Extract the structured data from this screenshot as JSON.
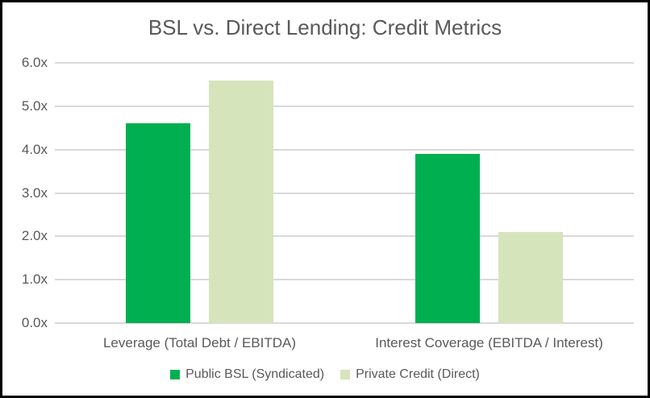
{
  "title": "BSL vs. Direct Lending: Credit Metrics",
  "chart_data": {
    "type": "bar",
    "title": "BSL vs. Direct Lending: Credit Metrics",
    "categories": [
      "Leverage (Total Debt / EBITDA)",
      "Interest Coverage (EBITDA / Interest)"
    ],
    "series": [
      {
        "name": "Public BSL (Syndicated)",
        "color": "#00B050",
        "values": [
          4.6,
          3.9
        ]
      },
      {
        "name": "Private Credit (Direct)",
        "color": "#D6E4BC",
        "values": [
          5.6,
          2.1
        ]
      }
    ],
    "ylim": [
      0,
      6
    ],
    "ytick_labels": [
      "0.0x",
      "1.0x",
      "2.0x",
      "3.0x",
      "4.0x",
      "5.0x",
      "6.0x"
    ],
    "grid": true,
    "legend_position": "bottom"
  },
  "colors": {
    "text": "#595959",
    "gridline": "#D9D9D9",
    "background": "#FFFFFF",
    "frame_border": "#000000"
  }
}
